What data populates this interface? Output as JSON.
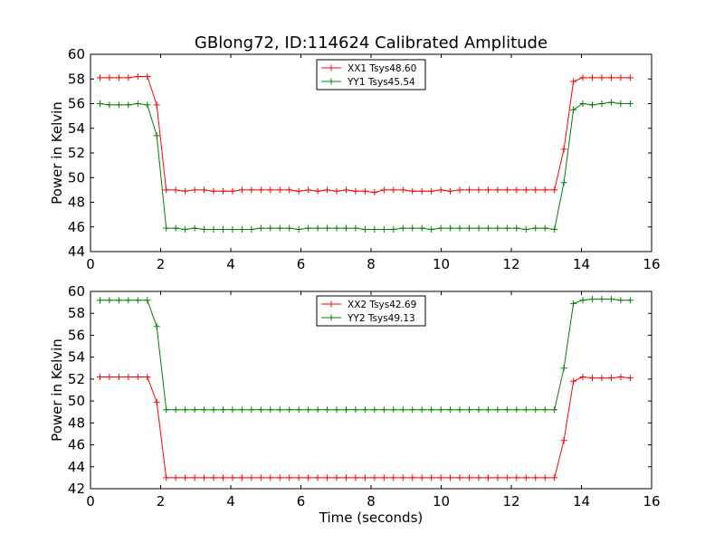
{
  "figure": {
    "title": "GBlong72, ID:114624 Calibrated Amplitude"
  },
  "chart_data": [
    {
      "type": "line",
      "title": "GBlong72, ID:114624 Calibrated Amplitude",
      "xlabel": "",
      "ylabel": "Power in Kelvin",
      "xlim": [
        0,
        16
      ],
      "ylim": [
        44,
        60
      ],
      "xticks": [
        0,
        2,
        4,
        6,
        8,
        10,
        12,
        14,
        16
      ],
      "yticks": [
        44,
        46,
        48,
        50,
        52,
        54,
        56,
        58,
        60
      ],
      "grid": false,
      "legend_position": "top-center",
      "x": [
        0.27,
        0.54,
        0.81,
        1.08,
        1.35,
        1.62,
        1.89,
        2.16,
        2.43,
        2.7,
        2.97,
        3.24,
        3.51,
        3.78,
        4.05,
        4.32,
        4.59,
        4.86,
        5.13,
        5.4,
        5.67,
        5.94,
        6.21,
        6.48,
        6.75,
        7.02,
        7.29,
        7.56,
        7.83,
        8.1,
        8.37,
        8.64,
        8.91,
        9.18,
        9.45,
        9.72,
        9.99,
        10.26,
        10.53,
        10.8,
        11.07,
        11.34,
        11.61,
        11.88,
        12.15,
        12.42,
        12.69,
        12.96,
        13.23,
        13.5,
        13.77,
        14.04,
        14.31,
        14.58,
        14.85,
        15.12,
        15.39
      ],
      "series": [
        {
          "name": "XX1 Tsys48.60",
          "color": "#ff0000",
          "values": [
            58.1,
            58.1,
            58.1,
            58.1,
            58.2,
            58.2,
            55.9,
            49.0,
            49.0,
            48.9,
            49.0,
            49.0,
            48.9,
            48.9,
            48.9,
            49.0,
            49.0,
            49.0,
            49.0,
            49.0,
            49.0,
            48.9,
            49.0,
            48.9,
            49.0,
            48.9,
            49.0,
            48.9,
            48.9,
            48.8,
            49.0,
            49.0,
            49.0,
            48.9,
            48.9,
            48.9,
            49.0,
            48.9,
            49.0,
            49.0,
            49.0,
            49.0,
            49.0,
            49.0,
            49.0,
            49.0,
            49.0,
            49.0,
            49.0,
            52.3,
            57.8,
            58.1,
            58.1,
            58.1,
            58.1,
            58.1,
            58.1
          ]
        },
        {
          "name": "YY1 Tsys45.54",
          "color": "#008000",
          "values": [
            56.0,
            55.9,
            55.9,
            55.9,
            56.0,
            55.9,
            53.4,
            45.9,
            45.9,
            45.8,
            45.9,
            45.8,
            45.8,
            45.8,
            45.8,
            45.8,
            45.8,
            45.9,
            45.9,
            45.9,
            45.9,
            45.8,
            45.9,
            45.9,
            45.9,
            45.9,
            45.9,
            45.9,
            45.8,
            45.8,
            45.8,
            45.8,
            45.9,
            45.9,
            45.9,
            45.8,
            45.9,
            45.9,
            45.9,
            45.9,
            45.9,
            45.9,
            45.9,
            45.9,
            45.9,
            45.8,
            45.9,
            45.9,
            45.8,
            49.6,
            55.5,
            56.0,
            55.9,
            56.0,
            56.1,
            56.0,
            56.0
          ]
        }
      ]
    },
    {
      "type": "line",
      "title": "",
      "xlabel": "Time (seconds)",
      "ylabel": "Power in Kelvin",
      "xlim": [
        0,
        16
      ],
      "ylim": [
        42,
        60
      ],
      "xticks": [
        0,
        2,
        4,
        6,
        8,
        10,
        12,
        14,
        16
      ],
      "yticks": [
        42,
        44,
        46,
        48,
        50,
        52,
        54,
        56,
        58,
        60
      ],
      "grid": false,
      "legend_position": "top-center",
      "x": [
        0.27,
        0.54,
        0.81,
        1.08,
        1.35,
        1.62,
        1.89,
        2.16,
        2.43,
        2.7,
        2.97,
        3.24,
        3.51,
        3.78,
        4.05,
        4.32,
        4.59,
        4.86,
        5.13,
        5.4,
        5.67,
        5.94,
        6.21,
        6.48,
        6.75,
        7.02,
        7.29,
        7.56,
        7.83,
        8.1,
        8.37,
        8.64,
        8.91,
        9.18,
        9.45,
        9.72,
        9.99,
        10.26,
        10.53,
        10.8,
        11.07,
        11.34,
        11.61,
        11.88,
        12.15,
        12.42,
        12.69,
        12.96,
        13.23,
        13.5,
        13.77,
        14.04,
        14.31,
        14.58,
        14.85,
        15.12,
        15.39
      ],
      "series": [
        {
          "name": "XX2 Tsys42.69",
          "color": "#ff0000",
          "values": [
            52.2,
            52.2,
            52.2,
            52.2,
            52.2,
            52.2,
            49.9,
            43.0,
            43.0,
            43.0,
            43.0,
            43.0,
            43.0,
            43.0,
            43.0,
            43.0,
            43.0,
            43.0,
            43.0,
            43.0,
            43.0,
            43.0,
            43.0,
            43.0,
            43.0,
            43.0,
            43.0,
            43.0,
            43.0,
            43.0,
            43.0,
            43.0,
            43.0,
            43.0,
            43.0,
            43.0,
            43.0,
            43.0,
            43.0,
            43.0,
            43.0,
            43.0,
            43.0,
            43.0,
            43.0,
            43.0,
            43.0,
            43.0,
            43.0,
            46.4,
            51.8,
            52.2,
            52.1,
            52.1,
            52.1,
            52.2,
            52.1
          ]
        },
        {
          "name": "YY2 Tsys49.13",
          "color": "#008000",
          "values": [
            59.2,
            59.2,
            59.2,
            59.2,
            59.2,
            59.2,
            56.8,
            49.2,
            49.2,
            49.2,
            49.2,
            49.2,
            49.2,
            49.2,
            49.2,
            49.2,
            49.2,
            49.2,
            49.2,
            49.2,
            49.2,
            49.2,
            49.2,
            49.2,
            49.2,
            49.2,
            49.2,
            49.2,
            49.2,
            49.2,
            49.2,
            49.2,
            49.2,
            49.2,
            49.2,
            49.2,
            49.2,
            49.2,
            49.2,
            49.2,
            49.2,
            49.2,
            49.2,
            49.2,
            49.2,
            49.2,
            49.2,
            49.2,
            49.2,
            53.0,
            58.9,
            59.2,
            59.3,
            59.3,
            59.3,
            59.2,
            59.2
          ]
        }
      ]
    }
  ]
}
